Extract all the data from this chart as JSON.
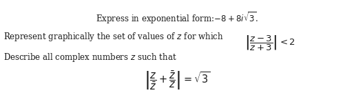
{
  "line1": "Express in exponential form:–$8 + 8i\\sqrt{3}$.",
  "line1_plain": "Express in exponential form:",
  "line1_math": "$-8 + 8i\\sqrt{3}$.",
  "line2_text": "Represent graphically the set of values of $z$ for which",
  "line2_math": "$\\left|\\dfrac{z-3}{z+3}\\right| < 2$",
  "line3": "Describe all complex numbers $z$ such that",
  "line4": "$\\left|\\dfrac{z}{\\bar{z}} + \\dfrac{\\bar{z}}{z}\\right| = \\sqrt{3}$",
  "bg_color": "#ffffff",
  "text_color": "#1a1a1a",
  "fontsize": 8.5
}
